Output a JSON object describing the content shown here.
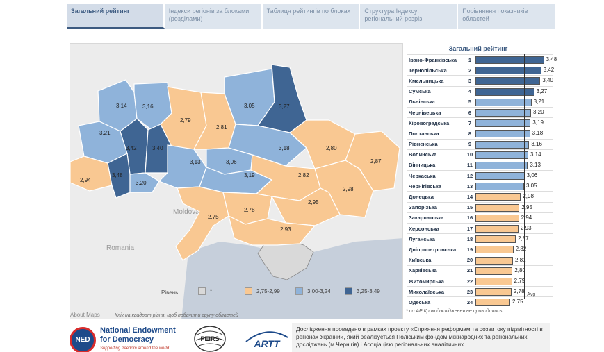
{
  "tabs": [
    {
      "label": "Загальний рейтинг",
      "active": true
    },
    {
      "label": "Індекси регіонів за блоками (розділами)",
      "active": false
    },
    {
      "label": "Таблиця рейтингів по блоках",
      "active": false
    },
    {
      "label": "Структура Індексу: регіональний розріз",
      "active": false
    },
    {
      "label": "Порівняння показників областей",
      "active": false
    }
  ],
  "map": {
    "region_values": [
      "3,14",
      "3,16",
      "3,05",
      "3,27",
      "3,21",
      "2,79",
      "2,81",
      "3,42",
      "3,40",
      "3,18",
      "2,80",
      "2,87",
      "2,94",
      "3,48",
      "3,20",
      "3,13",
      "3,06",
      "3,19",
      "2,82",
      "2,98",
      "2,95",
      "2,75",
      "2,78",
      "2,93"
    ],
    "geo_labels": {
      "moldova": "Moldova",
      "romania": "Romania"
    },
    "legend": {
      "title": "Рівень",
      "items": [
        {
          "label": "*",
          "color": "#d9d9d9"
        },
        {
          "label": "2,75-2,99",
          "color": "#f9c892"
        },
        {
          "label": "3,00-3,24",
          "color": "#8fb3da"
        },
        {
          "label": "3,25-3,49",
          "color": "#3f6593"
        }
      ]
    },
    "about_maps": "About Maps",
    "hint": "Клік на квадрат рівня, щоб побачити групу областей"
  },
  "ranking": {
    "title": "Загальний рейтинг",
    "avg_label": "Avg",
    "rows": [
      {
        "name": "Івано-Франківська",
        "rank": "1",
        "value": 3.48,
        "label": "3,48",
        "color": "#3f6593"
      },
      {
        "name": "Тернопільська",
        "rank": "2",
        "value": 3.42,
        "label": "3,42",
        "color": "#3f6593"
      },
      {
        "name": "Хмельницька",
        "rank": "3",
        "value": 3.4,
        "label": "3,40",
        "color": "#3f6593"
      },
      {
        "name": "Сумська",
        "rank": "4",
        "value": 3.27,
        "label": "3,27",
        "color": "#3f6593"
      },
      {
        "name": "Львівська",
        "rank": "5",
        "value": 3.21,
        "label": "3,21",
        "color": "#8fb3da"
      },
      {
        "name": "Чернівецька",
        "rank": "6",
        "value": 3.2,
        "label": "3,20",
        "color": "#8fb3da"
      },
      {
        "name": "Кіровоградська",
        "rank": "7",
        "value": 3.19,
        "label": "3,19",
        "color": "#8fb3da"
      },
      {
        "name": "Полтавська",
        "rank": "8",
        "value": 3.18,
        "label": "3,18",
        "color": "#8fb3da"
      },
      {
        "name": "Рівненська",
        "rank": "9",
        "value": 3.16,
        "label": "3,16",
        "color": "#8fb3da"
      },
      {
        "name": "Волинська",
        "rank": "10",
        "value": 3.14,
        "label": "3,14",
        "color": "#8fb3da"
      },
      {
        "name": "Вінницька",
        "rank": "11",
        "value": 3.13,
        "label": "3,13",
        "color": "#8fb3da"
      },
      {
        "name": "Черкаська",
        "rank": "12",
        "value": 3.06,
        "label": "3,06",
        "color": "#8fb3da"
      },
      {
        "name": "Чернігівська",
        "rank": "13",
        "value": 3.05,
        "label": "3,05",
        "color": "#8fb3da"
      },
      {
        "name": "Донецька",
        "rank": "14",
        "value": 2.98,
        "label": "2,98",
        "color": "#f9c892"
      },
      {
        "name": "Запорізька",
        "rank": "15",
        "value": 2.95,
        "label": "2,95",
        "color": "#f9c892"
      },
      {
        "name": "Закарпатська",
        "rank": "16",
        "value": 2.94,
        "label": "2,94",
        "color": "#f9c892"
      },
      {
        "name": "Херсонська",
        "rank": "17",
        "value": 2.93,
        "label": "2,93",
        "color": "#f9c892"
      },
      {
        "name": "Луганська",
        "rank": "18",
        "value": 2.87,
        "label": "2,87",
        "color": "#f9c892"
      },
      {
        "name": "Дніпропетровська",
        "rank": "19",
        "value": 2.82,
        "label": "2,82",
        "color": "#f9c892"
      },
      {
        "name": "Київська",
        "rank": "20",
        "value": 2.81,
        "label": "2,81",
        "color": "#f9c892"
      },
      {
        "name": "Харківська",
        "rank": "21",
        "value": 2.8,
        "label": "2,80",
        "color": "#f9c892"
      },
      {
        "name": "Житомирська",
        "rank": "22",
        "value": 2.79,
        "label": "2,79",
        "color": "#f9c892"
      },
      {
        "name": "Миколаївська",
        "rank": "23",
        "value": 2.78,
        "label": "2,78",
        "color": "#f9c892"
      },
      {
        "name": "Одеська",
        "rank": "24",
        "value": 2.75,
        "label": "2,75",
        "color": "#f9c892"
      }
    ],
    "footnote": "*  по АР Крим дослідження не проводилось"
  },
  "footer": {
    "ned_abbr": "NED",
    "ned_name_1": "National Endowment",
    "ned_name_2": "for Democracy",
    "ned_tagline": "Supporting freedom around the world",
    "peirs": "PEIRS",
    "artt": "ARTT",
    "text": "Дослідження проведено в рамках проекту «Сприяння реформам та розвитоку підзвітності в регіонах України», який реалізується Поліським фондом міжнародних та регіональних досліджень (м.Чернігів) і Асоціацією регіональних аналітичних"
  },
  "colors": {
    "low": "#f9c892",
    "mid": "#8fb3da",
    "high": "#3f6593",
    "none": "#d9d9d9",
    "accent": "#3c5a80"
  }
}
